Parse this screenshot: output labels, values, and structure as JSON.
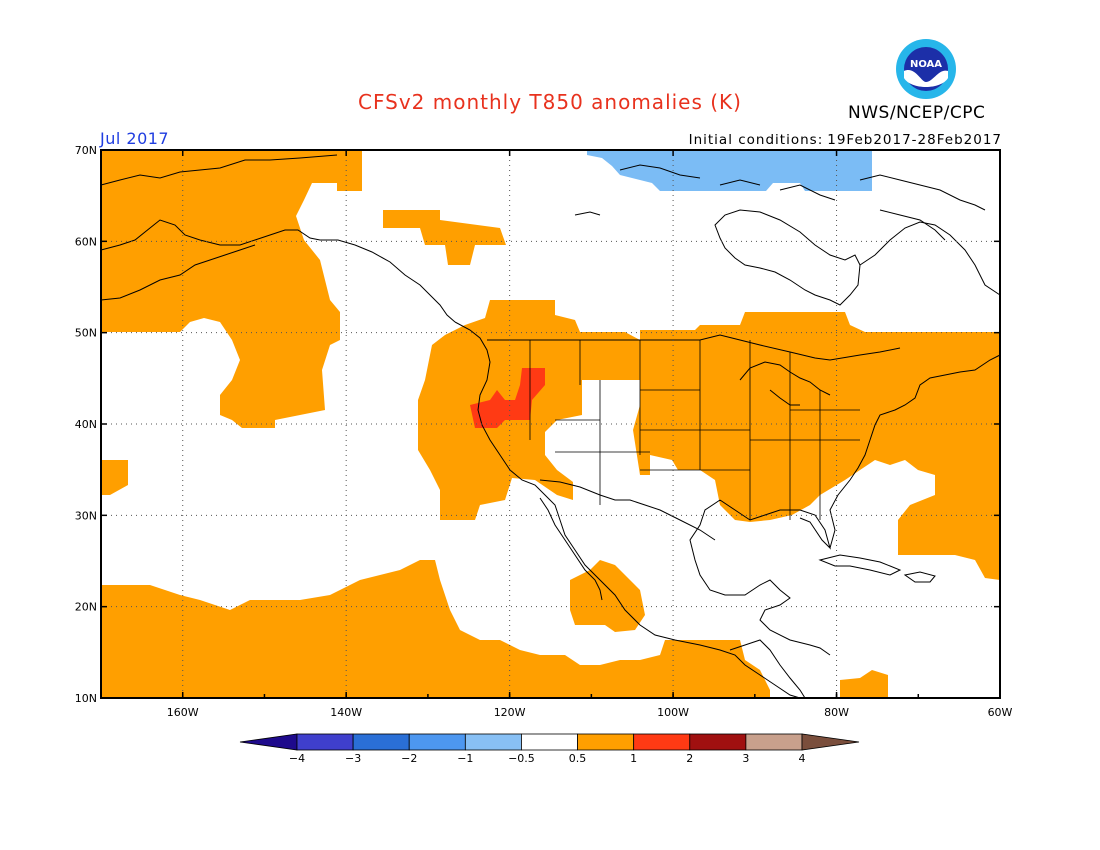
{
  "title": "CFSv2 monthly T850 anomalies (K)",
  "organization": "NWS/NCEP/CPC",
  "logo_text": "NOAA",
  "period": "Jul 2017",
  "initial_conditions_label": "Initial conditions:",
  "initial_conditions_range": "19Feb2017-28Feb2017",
  "colors": {
    "title": "#e8321e",
    "period": "#1f3de0",
    "anom_neg_half_to_1": "#7bbcf5",
    "anom_pos_half_to_1": "#ff9f00",
    "anom_1_to_2": "#ff3a14"
  },
  "map": {
    "lon_range": [
      -170,
      -60
    ],
    "lat_range": [
      10,
      70
    ],
    "lat_ticks": [
      "70N",
      "60N",
      "50N",
      "40N",
      "30N",
      "20N",
      "10N"
    ],
    "lon_ticks": [
      "160W",
      "140W",
      "120W",
      "100W",
      "80W",
      "60W"
    ]
  },
  "colorbar": {
    "boundaries": [
      "-4",
      "-3",
      "-2",
      "-1",
      "-0.5",
      "0.5",
      "1",
      "2",
      "3",
      "4"
    ],
    "colors": [
      "#1e0a8c",
      "#3f3fcc",
      "#2a6fd6",
      "#4d97f0",
      "#88c0f5",
      "#ffffff",
      "#ff9f00",
      "#ff3a14",
      "#a01010",
      "#c8a08c",
      "#7a4e3c"
    ]
  }
}
